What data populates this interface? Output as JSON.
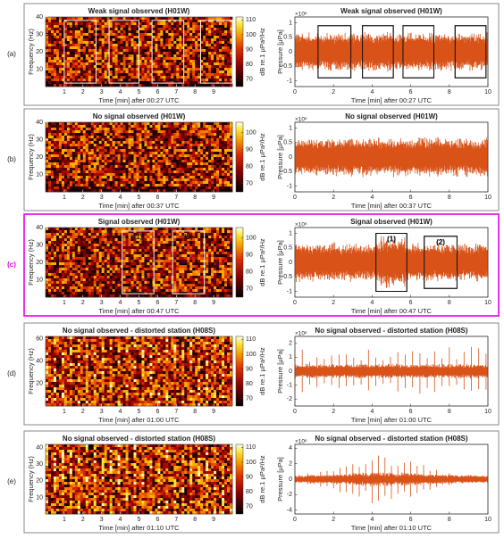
{
  "chart_data": [
    {
      "type": "spectrogram",
      "panel_label": "(a)",
      "title": "Weak signal observed (H01W)",
      "xlabel": "Time [min] after 00:27 UTC",
      "ylabel": "Frequency (Hz)",
      "colorbar_label": "dB re.1 μPa²/Hz",
      "xlim": [
        0,
        10
      ],
      "xticks": [
        1,
        2,
        3,
        4,
        5,
        6,
        7,
        8,
        9
      ],
      "ylim": [
        0,
        40
      ],
      "yticks": [
        10,
        20,
        30,
        40
      ],
      "clim": [
        65,
        112
      ],
      "cticks": [
        70,
        80,
        90,
        100,
        110
      ],
      "boxes": [
        {
          "x": [
            1.0,
            2.7
          ],
          "y": [
            2,
            38
          ]
        },
        {
          "x": [
            3.4,
            5.0
          ],
          "y": [
            2,
            38
          ]
        },
        {
          "x": [
            5.7,
            7.4
          ],
          "y": [
            2,
            38
          ]
        },
        {
          "x": [
            8.3,
            10
          ],
          "y": [
            2,
            38
          ]
        }
      ]
    },
    {
      "type": "waveform",
      "title": "Weak signal observed (H01W)",
      "xlabel": "Time [min] after 00:27 UTC",
      "ylabel": "Pressure [μPa]",
      "y_exponent": "×10⁶",
      "color": "#d95319",
      "xlim": [
        0,
        10
      ],
      "xticks": [
        0,
        2,
        4,
        6,
        8,
        10
      ],
      "ylim": [
        -1.2,
        1.2
      ],
      "yticks": [
        -1,
        -0.5,
        0,
        0.5,
        1
      ],
      "boxes": [
        {
          "x": [
            1.2,
            2.9
          ],
          "y": [
            -0.9,
            0.9
          ]
        },
        {
          "x": [
            3.5,
            5.1
          ],
          "y": [
            -0.9,
            0.9
          ]
        },
        {
          "x": [
            5.6,
            7.2
          ],
          "y": [
            -0.9,
            0.9
          ]
        },
        {
          "x": [
            8.3,
            9.9
          ],
          "y": [
            -0.9,
            0.9
          ]
        }
      ]
    },
    {
      "type": "spectrogram",
      "panel_label": "(b)",
      "title": "No signal observed (H01W)",
      "xlabel": "Time [min] after 00:37 UTC",
      "ylabel": "Frequency (Hz)",
      "colorbar_label": "dB re.1 μPa²/Hz",
      "xlim": [
        0,
        10
      ],
      "xticks": [
        1,
        2,
        3,
        4,
        5,
        6,
        7,
        8,
        9
      ],
      "ylim": [
        0,
        40
      ],
      "yticks": [
        10,
        20,
        30,
        40
      ],
      "clim": [
        65,
        106
      ],
      "cticks": [
        70,
        80,
        90,
        100
      ],
      "boxes": []
    },
    {
      "type": "waveform",
      "title": "No signal observed (H01W)",
      "xlabel": "Time [min] after 00:37 UTC",
      "ylabel": "Pressure [μPa]",
      "y_exponent": "×10⁶",
      "color": "#d95319",
      "xlim": [
        0,
        10
      ],
      "xticks": [
        0,
        2,
        4,
        6,
        8,
        10
      ],
      "ylim": [
        -1.2,
        1.2
      ],
      "yticks": [
        -1,
        -0.5,
        0,
        0.5,
        1
      ],
      "boxes": []
    },
    {
      "type": "spectrogram",
      "panel_label": "(c)",
      "highlight_color": "#e600e6",
      "title": "Signal observed (H01W)",
      "xlabel": "Time [min] after 00:47 UTC",
      "ylabel": "Frequency (Hz)",
      "colorbar_label": "dB re.1 μPa²/Hz",
      "xlim": [
        0,
        10
      ],
      "xticks": [
        1,
        2,
        3,
        4,
        5,
        6,
        7,
        8,
        9
      ],
      "ylim": [
        0,
        40
      ],
      "yticks": [
        10,
        20,
        30,
        40
      ],
      "clim": [
        65,
        106
      ],
      "cticks": [
        70,
        80,
        90,
        100
      ],
      "boxes": [
        {
          "x": [
            4.1,
            5.8
          ],
          "y": [
            2,
            38
          ],
          "label": "(1)"
        },
        {
          "x": [
            6.8,
            8.5
          ],
          "y": [
            2,
            38
          ],
          "label": "(2)"
        }
      ]
    },
    {
      "type": "waveform",
      "title": "Signal observed (H01W)",
      "xlabel": "Time [min] after 00:47 UTC",
      "ylabel": "Pressure [μPa]",
      "y_exponent": "×10⁶",
      "color": "#d95319",
      "xlim": [
        0,
        10
      ],
      "xticks": [
        0,
        2,
        4,
        6,
        8,
        10
      ],
      "ylim": [
        -1.2,
        1.2
      ],
      "yticks": [
        -1,
        -0.5,
        0,
        0.5,
        1
      ],
      "boxes": [
        {
          "x": [
            4.2,
            5.8
          ],
          "y": [
            -1.0,
            1.0
          ],
          "label": "(1)"
        },
        {
          "x": [
            6.7,
            8.4
          ],
          "y": [
            -0.9,
            0.9
          ],
          "label": "(2)"
        }
      ]
    },
    {
      "type": "spectrogram",
      "panel_label": "(d)",
      "title": "No signal observed - distorted station (H08S)",
      "xlabel": "Time [min] after 01:00 UTC",
      "ylabel": "Frequency (Hz)",
      "colorbar_label": "dB re.1 μPa²/Hz",
      "xlim": [
        0,
        10
      ],
      "xticks": [
        1,
        2,
        3,
        4,
        5,
        6,
        7,
        8,
        9
      ],
      "ylim": [
        0,
        62
      ],
      "yticks": [
        20,
        40,
        60
      ],
      "clim": [
        65,
        112
      ],
      "cticks": [
        70,
        80,
        90,
        100,
        110
      ],
      "boxes": []
    },
    {
      "type": "waveform",
      "title": "No signal observed - distorted station (H08S)",
      "xlabel": "Time [min] after 01:00 UTC",
      "ylabel": "Pressure [μPa]",
      "y_exponent": "×10⁶",
      "color": "#d95319",
      "xlim": [
        0,
        10
      ],
      "xticks": [
        0,
        2,
        4,
        6,
        8,
        10
      ],
      "ylim": [
        -2.5,
        2.5
      ],
      "yticks": [
        -2,
        -1,
        0,
        1,
        2
      ],
      "boxes": []
    },
    {
      "type": "spectrogram",
      "panel_label": "(e)",
      "title": "No signal observed - distorted station (H08S)",
      "xlabel": "Time [min] after 01:10 UTC",
      "ylabel": "Frequency (Hz)",
      "colorbar_label": "dB re.1 μPa²/Hz",
      "xlim": [
        0,
        10
      ],
      "xticks": [
        1,
        2,
        3,
        4,
        5,
        6,
        7,
        8,
        9
      ],
      "ylim": [
        0,
        42
      ],
      "yticks": [
        10,
        20,
        30,
        40
      ],
      "clim": [
        65,
        112
      ],
      "cticks": [
        70,
        80,
        90,
        100,
        110
      ],
      "boxes": []
    },
    {
      "type": "waveform",
      "title": "No signal observed - distorted station (H08S)",
      "xlabel": "Time [min] after 01:10 UTC",
      "ylabel": "Pressure [μPa]",
      "y_exponent": "×10⁶",
      "color": "#d95319",
      "xlim": [
        0,
        10
      ],
      "xticks": [
        0,
        2,
        4,
        6,
        8,
        10
      ],
      "ylim": [
        -4.5,
        4.5
      ],
      "yticks": [
        -4,
        -2,
        0,
        2,
        4
      ],
      "boxes": []
    }
  ]
}
